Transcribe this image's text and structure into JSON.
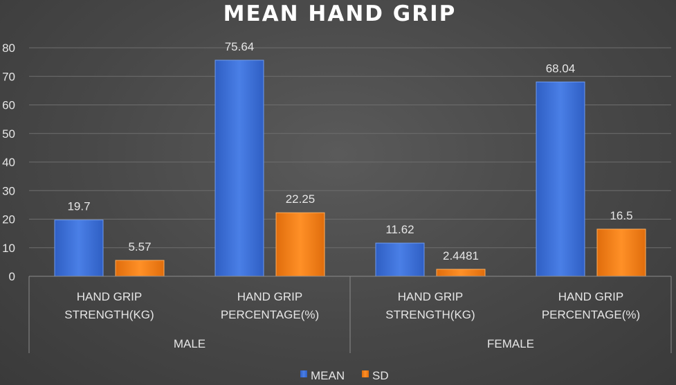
{
  "chart_data": {
    "type": "bar",
    "title": "MEAN HAND GRIP",
    "xlabel": "",
    "ylabel": "",
    "ylim": [
      0,
      80
    ],
    "yticks": [
      0,
      10,
      20,
      30,
      40,
      50,
      60,
      70,
      80
    ],
    "grid": true,
    "legend_position": "bottom",
    "groups": [
      {
        "label": "MALE",
        "categories": [
          [
            "HAND GRIP",
            "STRENGTH(KG)"
          ],
          [
            "HAND GRIP",
            "PERCENTAGE(%)"
          ]
        ]
      },
      {
        "label": "FEMALE",
        "categories": [
          [
            "HAND GRIP",
            "STRENGTH(KG)"
          ],
          [
            "HAND GRIP",
            "PERCENTAGE(%)"
          ]
        ]
      }
    ],
    "series": [
      {
        "name": "MEAN",
        "color": "#3c6fd8",
        "values": [
          19.7,
          75.64,
          11.62,
          68.04
        ],
        "labels": [
          "19.7",
          "75.64",
          "11.62",
          "68.04"
        ]
      },
      {
        "name": "SD",
        "color": "#f07f18",
        "values": [
          5.57,
          22.25,
          2.4481,
          16.5
        ],
        "labels": [
          "5.57",
          "22.25",
          "2.4481",
          "16.5"
        ]
      }
    ]
  }
}
